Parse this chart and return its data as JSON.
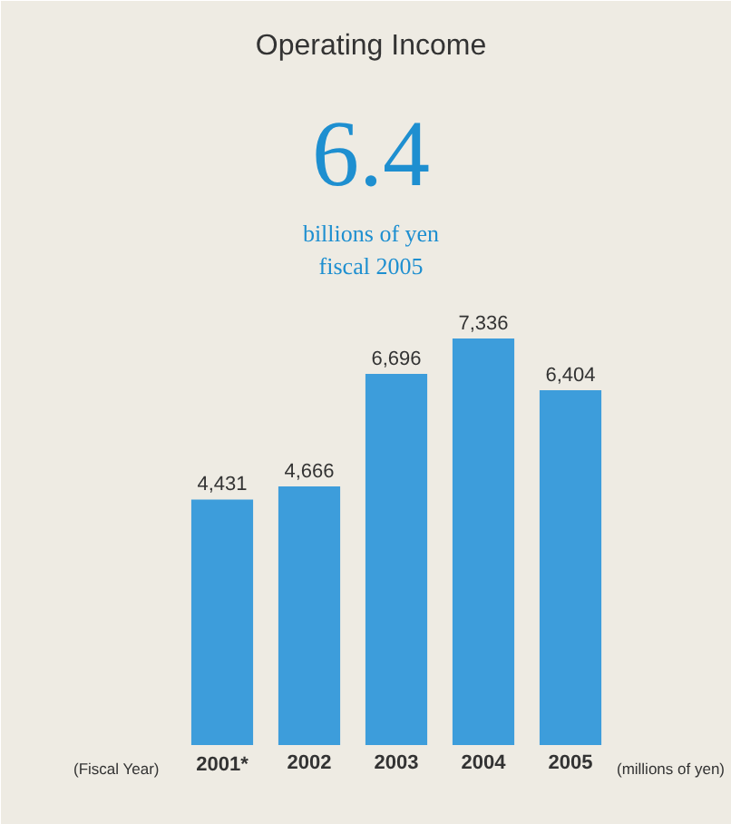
{
  "chart_data": {
    "type": "bar",
    "title": "Operating Income",
    "categories": [
      "2001*",
      "2002",
      "2003",
      "2004",
      "2005"
    ],
    "values": [
      4431,
      4666,
      6696,
      7336,
      6404
    ],
    "color": "#3d9ddb",
    "value_labels": [
      "4,431",
      "4,666",
      "6,696",
      "7,336",
      "6,404"
    ],
    "annotations": [
      "6.4",
      "billions of yen",
      "fiscal 2005",
      "(Fiscal Year)",
      "(millions of yen)"
    ]
  }
}
